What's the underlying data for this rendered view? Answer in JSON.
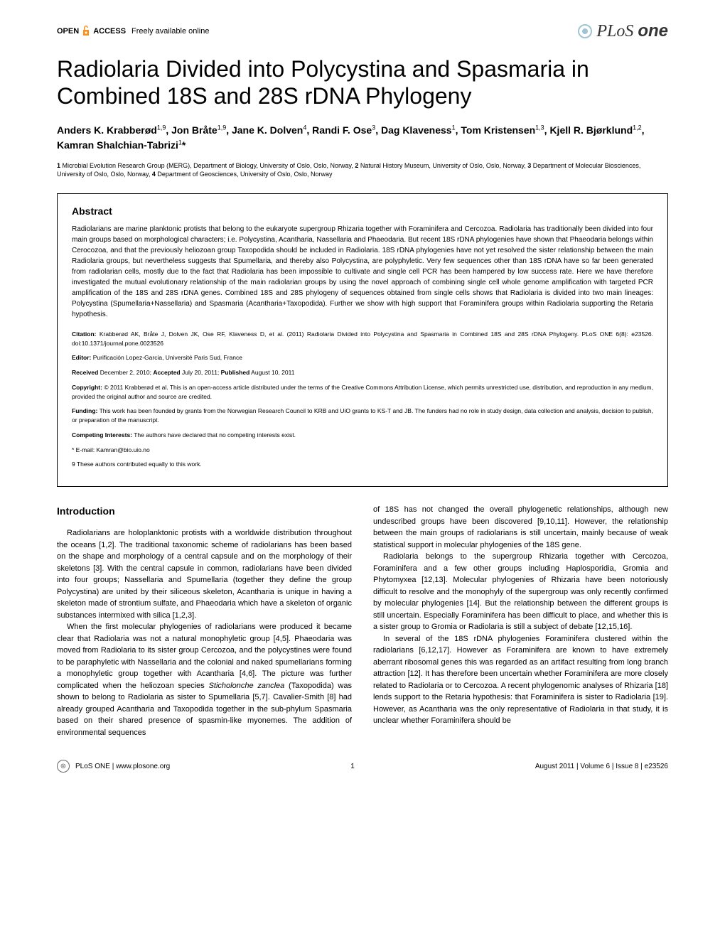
{
  "header": {
    "open_access": "OPEN",
    "access": "ACCESS",
    "freely": "Freely available online",
    "journal_prefix": "PLoS",
    "journal_suffix": "one"
  },
  "title": "Radiolaria Divided into Polycystina and Spasmaria in Combined 18S and 28S rDNA Phylogeny",
  "authors_html": "Anders K. Krabberød<sup>1,9</sup>, Jon Bråte<sup>1,9</sup>, Jane K. Dolven<sup>4</sup>, Randi F. Ose<sup>3</sup>, Dag Klaveness<sup>1</sup>, Tom Kristensen<sup>1,3</sup>, Kjell R. Bjørklund<sup>1,2</sup>, Kamran Shalchian-Tabrizi<sup>1</sup>*",
  "affiliations_html": "<b>1</b> Microbial Evolution Research Group (MERG), Department of Biology, University of Oslo, Oslo, Norway, <b>2</b> Natural History Museum, University of Oslo, Oslo, Norway, <b>3</b> Department of Molecular Biosciences, University of Oslo, Oslo, Norway, <b>4</b> Department of Geosciences, University of Oslo, Oslo, Norway",
  "abstract": {
    "heading": "Abstract",
    "text": "Radiolarians are marine planktonic protists that belong to the eukaryote supergroup Rhizaria together with Foraminifera and Cercozoa. Radiolaria has traditionally been divided into four main groups based on morphological characters; i.e. Polycystina, Acantharia, Nassellaria and Phaeodaria. But recent 18S rDNA phylogenies have shown that Phaeodaria belongs within Cerocozoa, and that the previously heliozoan group Taxopodida should be included in Radiolaria. 18S rDNA phylogenies have not yet resolved the sister relationship between the main Radiolaria groups, but nevertheless suggests that Spumellaria, and thereby also Polycystina, are polyphyletic. Very few sequences other than 18S rDNA have so far been generated from radiolarian cells, mostly due to the fact that Radiolaria has been impossible to cultivate and single cell PCR has been hampered by low success rate. Here we have therefore investigated the mutual evolutionary relationship of the main radiolarian groups by using the novel approach of combining single cell whole genome amplification with targeted PCR amplification of the 18S and 28S rDNA genes. Combined 18S and 28S phylogeny of sequences obtained from single cells shows that Radiolaria is divided into two main lineages: Polycystina (Spumellaria+Nassellaria) and Spasmaria (Acantharia+Taxopodida). Further we show with high support that Foraminifera groups within Radiolaria supporting the Retaria hypothesis."
  },
  "meta": {
    "citation_label": "Citation:",
    "citation": " Krabberød AK, Bråte J, Dolven JK, Ose RF, Klaveness D, et al. (2011) Radiolaria Divided into Polycystina and Spasmaria in Combined 18S and 28S rDNA Phylogeny. PLoS ONE 6(8): e23526. doi:10.1371/journal.pone.0023526",
    "editor_label": "Editor:",
    "editor": " Purificación Lopez-Garcia, Université Paris Sud, France",
    "received_label": "Received",
    "received": " December 2, 2010; ",
    "accepted_label": "Accepted",
    "accepted": " July 20, 2011; ",
    "published_label": "Published",
    "published": " August 10, 2011",
    "copyright_label": "Copyright:",
    "copyright": " © 2011 Krabberød et al. This is an open-access article distributed under the terms of the Creative Commons Attribution License, which permits unrestricted use, distribution, and reproduction in any medium, provided the original author and source are credited.",
    "funding_label": "Funding:",
    "funding": " This work has been founded by grants from the Norwegian Research Council to KRB and UiO grants to KS-T and JB. The funders had no role in study design, data collection and analysis, decision to publish, or preparation of the manuscript.",
    "competing_label": "Competing Interests:",
    "competing": " The authors have declared that no competing interests exist.",
    "email": "* E-mail: Kamran@bio.uio.no",
    "equal": "9 These authors contributed equally to this work."
  },
  "intro": {
    "heading": "Introduction",
    "p1": "Radiolarians are holoplanktonic protists with a worldwide distribution throughout the oceans [1,2]. The traditional taxonomic scheme of radiolarians has been based on the shape and morphology of a central capsule and on the morphology of their skeletons [3]. With the central capsule in common, radiolarians have been divided into four groups; Nassellaria and Spumellaria (together they define the group Polycystina) are united by their siliceous skeleton, Acantharia is unique in having a skeleton made of strontium sulfate, and Phaeodaria which have a skeleton of organic substances intermixed with silica [1,2,3].",
    "p2": "When the first molecular phylogenies of radiolarians were produced it became clear that Radiolaria was not a natural monophyletic group [4,5]. Phaeodaria was moved from Radiolaria to its sister group Cercozoa, and the polycystines were found to be paraphyletic with Nassellaria and the colonial and naked spumellarians forming a monophyletic group together with Acantharia [4,6]. The picture was further complicated when the heliozoan species Sticholonche zanclea (Taxopodida) was shown to belong to Radiolaria as sister to Spumellaria [5,7]. Cavalier-Smith [8] had already grouped Acantharia and Taxopodida together in the sub-phylum Spasmaria based on their shared presence of spasmin-like myonemes. The addition of environmental sequences",
    "p3": "of 18S has not changed the overall phylogenetic relationships, although new undescribed groups have been discovered [9,10,11]. However, the relationship between the main groups of radiolarians is still uncertain, mainly because of weak statistical support in molecular phylogenies of the 18S gene.",
    "p4": "Radiolaria belongs to the supergroup Rhizaria together with Cercozoa, Foraminifera and a few other groups including Haplosporidia, Gromia and Phytomyxea [12,13]. Molecular phylogenies of Rhizaria have been notoriously difficult to resolve and the monophyly of the supergroup was only recently confirmed by molecular phylogenies [14]. But the relationship between the different groups is still uncertain. Especially Foraminifera has been difficult to place, and whether this is a sister group to Gromia or Radiolaria is still a subject of debate [12,15,16].",
    "p5": "In several of the 18S rDNA phylogenies Foraminifera clustered within the radiolarians [6,12,17]. However as Foraminifera are known to have extremely aberrant ribosomal genes this was regarded as an artifact resulting from long branch attraction [12]. It has therefore been uncertain whether Foraminifera are more closely related to Radiolaria or to Cercozoa. A recent phylogenomic analyses of Rhizaria [18] lends support to the Retaria hypothesis: that Foraminifera is sister to Radiolaria [19]. However, as Acantharia was the only representative of Radiolaria in that study, it is unclear whether Foraminifera should be"
  },
  "footer": {
    "site": "PLoS ONE | www.plosone.org",
    "page": "1",
    "issue": "August 2011 | Volume 6 | Issue 8 | e23526"
  }
}
